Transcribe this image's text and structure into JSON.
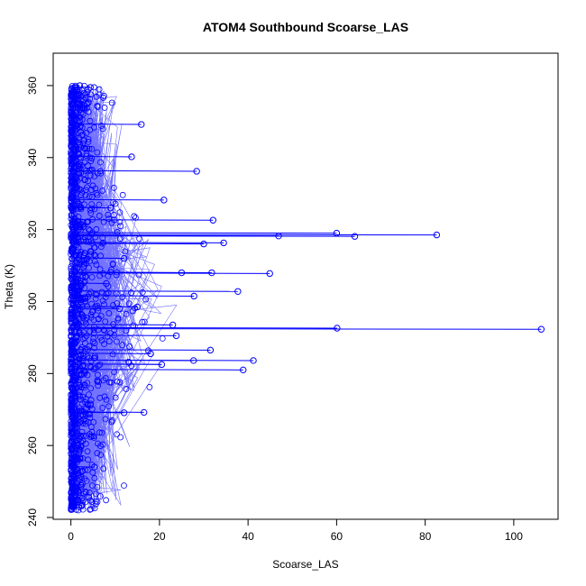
{
  "chart_data": {
    "type": "scatter",
    "title": "ATOM4 Southbound Scoarse_LAS",
    "xlabel": "Scoarse_LAS",
    "ylabel": "Theta (K)",
    "xlim": [
      -4,
      110
    ],
    "ylim": [
      239.5,
      369
    ],
    "x_ticks": [
      0,
      20,
      40,
      60,
      80,
      100
    ],
    "y_ticks": [
      240,
      260,
      280,
      300,
      320,
      340,
      360
    ],
    "grid": false,
    "legend": "none",
    "style": {
      "color": "#0000ff",
      "marker": "open-circle",
      "connected": true
    },
    "series": [
      {
        "values": [
          {
            "x": 106.2,
            "y": 292.3
          },
          {
            "x": 60.1,
            "y": 292.6
          },
          {
            "x": 82.6,
            "y": 318.5
          },
          {
            "x": 64.1,
            "y": 318.1
          },
          {
            "x": 60.0,
            "y": 319.0
          },
          {
            "x": 46.9,
            "y": 318.2
          },
          {
            "x": 44.9,
            "y": 307.8
          },
          {
            "x": 37.7,
            "y": 302.8
          },
          {
            "x": 41.2,
            "y": 283.6
          },
          {
            "x": 38.9,
            "y": 281.0
          },
          {
            "x": 32.1,
            "y": 322.6
          },
          {
            "x": 28.4,
            "y": 336.2
          },
          {
            "x": 21.0,
            "y": 328.2
          },
          {
            "x": 15.9,
            "y": 349.2
          },
          {
            "x": 13.7,
            "y": 340.2
          },
          {
            "x": 16.5,
            "y": 269.2
          },
          {
            "x": 27.8,
            "y": 301.5
          },
          {
            "x": 31.5,
            "y": 286.5
          },
          {
            "x": 27.7,
            "y": 283.6
          },
          {
            "x": 23.0,
            "y": 293.5
          },
          {
            "x": 23.8,
            "y": 290.5
          },
          {
            "x": 25.0,
            "y": 308.0
          },
          {
            "x": 30.0,
            "y": 316.0
          },
          {
            "x": 31.8,
            "y": 308.0
          },
          {
            "x": 34.5,
            "y": 316.3
          },
          {
            "x": 20.5,
            "y": 282.5
          },
          {
            "x": 12.0,
            "y": 269.1
          },
          {
            "x": 5.3,
            "y": 254.0
          },
          {
            "x": 2.5,
            "y": 243.4
          },
          {
            "x": 4.4,
            "y": 359.5
          },
          {
            "x": 2.0,
            "y": 360.0
          },
          {
            "x": 0.5,
            "y": 245.0
          },
          {
            "x": 0.3,
            "y": 250.0
          },
          {
            "x": 0.2,
            "y": 355.0
          },
          {
            "x": 9.0,
            "y": 326.0
          },
          {
            "x": 11.0,
            "y": 298.0
          },
          {
            "x": 15.0,
            "y": 298.5
          },
          {
            "x": 18.0,
            "y": 285.5
          },
          {
            "x": 8.0,
            "y": 305.0
          },
          {
            "x": 12.0,
            "y": 312.0
          }
        ]
      }
    ]
  }
}
